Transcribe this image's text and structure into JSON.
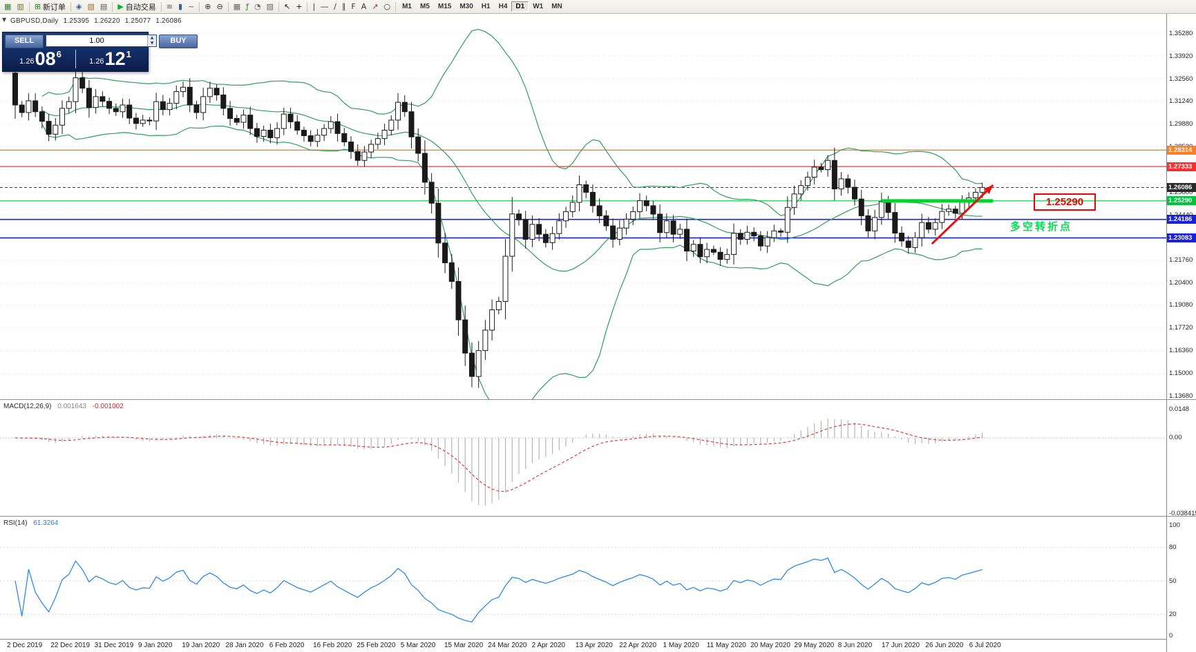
{
  "toolbar": {
    "groups": [
      {
        "items": [
          {
            "name": "new-chart-icon",
            "glyph": "▦",
            "color": "#3f7d3f"
          },
          {
            "name": "profiles-icon",
            "glyph": "▥",
            "color": "#7d6a3f"
          }
        ]
      },
      {
        "items": [
          {
            "name": "new-order-button",
            "glyph": "⊞",
            "color": "#1d8a1d",
            "label": "新订单"
          }
        ]
      },
      {
        "items": [
          {
            "name": "market-watch-icon",
            "glyph": "◈",
            "color": "#30589c"
          },
          {
            "name": "navigator-icon",
            "glyph": "▧",
            "color": "#9c7430"
          },
          {
            "name": "terminal-icon",
            "glyph": "▤",
            "color": "#555555"
          }
        ]
      },
      {
        "items": [
          {
            "name": "autotrading-button",
            "glyph": "▶",
            "color": "#0faf2f",
            "label": "自动交易"
          }
        ]
      },
      {
        "items": [
          {
            "name": "bar-chart-icon",
            "glyph": "≡",
            "color": "#3f5f8f"
          },
          {
            "name": "candlestick-chart-icon",
            "glyph": "▮",
            "color": "#3f5f8f"
          },
          {
            "name": "line-chart-icon",
            "glyph": "~",
            "color": "#3f5f8f"
          }
        ]
      },
      {
        "items": [
          {
            "name": "zoom-in-icon",
            "glyph": "⊕",
            "color": "#333333"
          },
          {
            "name": "zoom-out-icon",
            "glyph": "⊖",
            "color": "#333333"
          }
        ]
      },
      {
        "items": [
          {
            "name": "tile-windows-icon",
            "glyph": "▦",
            "color": "#666666"
          },
          {
            "name": "indicators-icon",
            "glyph": "ƒ",
            "color": "#1d8a1d"
          },
          {
            "name": "periods-icon",
            "glyph": "◔",
            "color": "#666666"
          },
          {
            "name": "templates-icon",
            "glyph": "▨",
            "color": "#666666"
          }
        ]
      },
      {
        "items": [
          {
            "name": "cursor-tool-icon",
            "glyph": "↖",
            "color": "#111111"
          },
          {
            "name": "crosshair-tool-icon",
            "glyph": "+",
            "color": "#111111"
          }
        ]
      },
      {
        "items": [
          {
            "name": "vertical-line-tool-icon",
            "glyph": "|",
            "color": "#333333"
          },
          {
            "name": "horizontal-line-tool-icon",
            "glyph": "―",
            "color": "#333333"
          },
          {
            "name": "trendline-tool-icon",
            "glyph": "∕",
            "color": "#333333"
          },
          {
            "name": "channel-tool-icon",
            "glyph": "∥",
            "color": "#333333"
          },
          {
            "name": "fibonacci-tool-icon",
            "glyph": "F",
            "color": "#333333"
          },
          {
            "name": "text-tool-icon",
            "glyph": "A",
            "color": "#333333"
          },
          {
            "name": "arrows-tool-icon",
            "glyph": "↗",
            "color": "#b03030"
          },
          {
            "name": "shapes-tool-icon",
            "glyph": "○",
            "color": "#333333"
          }
        ]
      }
    ],
    "timeframes": [
      "M1",
      "M5",
      "M15",
      "M30",
      "H1",
      "H4",
      "D1",
      "W1",
      "MN"
    ],
    "active_timeframe": "D1"
  },
  "chart": {
    "header": {
      "symbol": "GBPUSD,Daily",
      "open": "1.25395",
      "high": "1.26220",
      "low": "1.25077",
      "close": "1.26086"
    },
    "trade_panel": {
      "sell_label": "SELL",
      "buy_label": "BUY",
      "volume": "1.00",
      "sell_price": {
        "prefix": "1.26",
        "big": "08",
        "sup": "6"
      },
      "buy_price": {
        "prefix": "1.26",
        "big": "12",
        "sup": "1"
      }
    },
    "annotations": {
      "price_box": "1.25290",
      "turning_point": "多空转折点"
    }
  },
  "chart_data": {
    "type": "candlestick",
    "symbol": "GBPUSD",
    "timeframe": "Daily",
    "header_ohlc": {
      "open": 1.25395,
      "high": 1.2622,
      "low": 1.25077,
      "close": 1.26086
    },
    "y_axis": {
      "top": 1.3528,
      "bottom": 1.1368,
      "ticks": [
        "1.35280",
        "1.33920",
        "1.32560",
        "1.31240",
        "1.29880",
        "1.28520",
        "1.27160",
        "1.25800",
        "1.24440",
        "1.23080",
        "1.21760",
        "1.20400",
        "1.19080",
        "1.17720",
        "1.16360",
        "1.15000",
        "1.13680"
      ]
    },
    "x_labels": [
      "2 Dec 2019",
      "22 Dec 2019",
      "31 Dec 2019",
      "9 Jan 2020",
      "19 Jan 2020",
      "28 Jan 2020",
      "6 Feb 2020",
      "16 Feb 2020",
      "25 Feb 2020",
      "5 Mar 2020",
      "15 Mar 2020",
      "24 Mar 2020",
      "2 Apr 2020",
      "13 Apr 2020",
      "22 Apr 2020",
      "1 May 2020",
      "11 May 2020",
      "20 May 2020",
      "29 May 2020",
      "8 Jun 2020",
      "17 Jun 2020",
      "26 Jun 2020",
      "6 Jul 2020"
    ],
    "first_open": 1.329,
    "closes": [
      1.31,
      1.3055,
      1.3125,
      1.306,
      1.3003,
      1.2926,
      1.298,
      1.308,
      1.312,
      1.3262,
      1.32,
      1.3085,
      1.315,
      1.3122,
      1.308,
      1.306,
      1.31,
      1.3022,
      1.299,
      1.301,
      1.3005,
      1.312,
      1.3073,
      1.311,
      1.318,
      1.3206,
      1.31,
      1.3055,
      1.315,
      1.32,
      1.316,
      1.308,
      1.302,
      1.2997,
      1.304,
      1.296,
      1.2913,
      1.295,
      1.2905,
      1.296,
      1.3046,
      1.3,
      1.295,
      1.2917,
      1.2883,
      1.292,
      1.296,
      1.3001,
      1.293,
      1.288,
      1.2823,
      1.277,
      1.282,
      1.2866,
      1.29,
      1.295,
      1.301,
      1.3116,
      1.306,
      1.291,
      1.2812,
      1.264,
      1.2515,
      1.2278,
      1.216,
      1.2049,
      1.182,
      1.1622,
      1.1483,
      1.1637,
      1.1759,
      1.188,
      1.193,
      1.2199,
      1.2451,
      1.2416,
      1.23,
      1.2389,
      1.233,
      1.228,
      1.2334,
      1.241,
      1.2465,
      1.252,
      1.2625,
      1.258,
      1.25,
      1.244,
      1.238,
      1.23,
      1.2367,
      1.242,
      1.2465,
      1.253,
      1.25,
      1.245,
      1.234,
      1.241,
      1.233,
      1.236,
      1.223,
      1.227,
      1.2196,
      1.224,
      1.2223,
      1.218,
      1.221,
      1.2336,
      1.23,
      1.2342,
      1.232,
      1.226,
      1.231,
      1.235,
      1.2342,
      1.249,
      1.257,
      1.262,
      1.267,
      1.273,
      1.2715,
      1.277,
      1.26,
      1.266,
      1.261,
      1.254,
      1.244,
      1.235,
      1.243,
      1.2524,
      1.246,
      1.2337,
      1.229,
      1.2251,
      1.231,
      1.24,
      1.236,
      1.24,
      1.2466,
      1.248,
      1.2455,
      1.252,
      1.2547,
      1.258,
      1.2609
    ],
    "bollinger": {
      "period": 20,
      "deviation": 2,
      "color": "#2f9e5b"
    },
    "hlines": [
      {
        "price": 1.28314,
        "label": "1.28314",
        "color": "#ff7f27",
        "width": 1.4,
        "dash": false
      },
      {
        "price": 1.27333,
        "label": "1.27333",
        "color": "#ff2e2e",
        "width": 1.2,
        "dash": false
      },
      {
        "price": 1.26086,
        "label": "1.26086",
        "color": "#3c3c3c",
        "width": 1,
        "dash": true,
        "is_price": true
      },
      {
        "price": 1.2529,
        "label": "1.25290",
        "color": "#00c53c",
        "width": 1.2,
        "dash": false
      },
      {
        "price": 1.24186,
        "label": "1.24186",
        "color": "#1821dc",
        "width": 1.6,
        "dash": false
      },
      {
        "price": 1.23083,
        "label": "1.23083",
        "color": "#1821dc",
        "width": 1.6,
        "dash": false
      }
    ],
    "objects": {
      "thick_segment": {
        "price": 1.2529,
        "from_index": 129,
        "to_index": 145.6,
        "color": "#00d42e",
        "width": 5
      },
      "trend_arrow": {
        "from_index": 136.5,
        "from_price": 1.2273,
        "to_index": 145.6,
        "to_price": 1.2623,
        "color": "#e80f0f",
        "width": 3
      }
    },
    "macd": {
      "title": "MACD(12,26,9)",
      "value_main": "0.001643",
      "value_signal": "-0.001002",
      "fast": 12,
      "slow": 26,
      "signal": 9,
      "axis": {
        "max": 0.0148,
        "min": -0.038415,
        "labels": [
          {
            "v": 0.0148,
            "t": "0.0148"
          },
          {
            "v": 0,
            "t": "0.00"
          },
          {
            "v": -0.038415,
            "t": "-0.038415"
          }
        ]
      },
      "histogram_color": "#b5b5b5",
      "signal_color": "#e03c3c"
    },
    "rsi": {
      "title": "RSI(14)",
      "period": 14,
      "value": "61.3264",
      "color": "#2d8ae5",
      "axis": {
        "max": 100,
        "min": 0,
        "labels": [
          {
            "v": 100,
            "t": "100"
          },
          {
            "v": 80,
            "t": "80"
          },
          {
            "v": 50,
            "t": "50"
          },
          {
            "v": 20,
            "t": "20"
          },
          {
            "v": 0,
            "t": "0"
          }
        ],
        "levels": [
          80,
          50,
          20
        ]
      }
    }
  }
}
